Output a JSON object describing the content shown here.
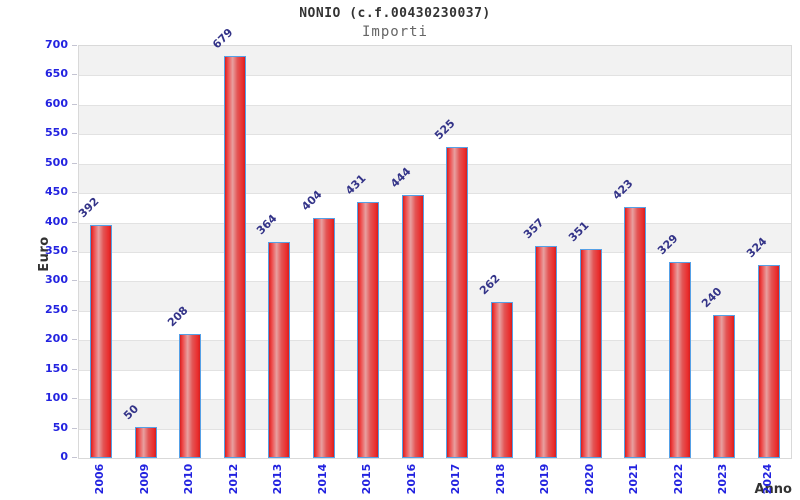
{
  "header": {
    "title": "NONIO (c.f.00430230037)",
    "subtitle": "Importi"
  },
  "axes": {
    "y_title": "Euro",
    "x_title": "Anno"
  },
  "chart_data": {
    "type": "bar",
    "title": "NONIO (c.f.00430230037)",
    "subtitle": "Importi",
    "xlabel": "Anno",
    "ylabel": "Euro",
    "categories": [
      "2006",
      "2009",
      "2010",
      "2012",
      "2013",
      "2014",
      "2015",
      "2016",
      "2017",
      "2018",
      "2019",
      "2020",
      "2021",
      "2022",
      "2023",
      "2024"
    ],
    "values": [
      392,
      50,
      208,
      679,
      364,
      404,
      431,
      444,
      525,
      262,
      357,
      351,
      423,
      329,
      240,
      324
    ],
    "ylim": [
      0,
      700
    ],
    "ytick_step": 50,
    "grid": "horizontal-alternating-bands",
    "legend": "none",
    "value_labels_rotation_deg": -45,
    "x_labels_rotation_deg": -90,
    "colors": {
      "bar_edge_red": "#d61f1f",
      "bar_center_pink": "#e8a0a0",
      "bar_border_blue": "#55a0e6",
      "tick_label_blue": "#2323e0",
      "value_label_navy": "#333388",
      "band_gray": "#f2f2f2",
      "band_white": "#ffffff",
      "gridline_gray": "#e2e2e2",
      "plot_border_gray": "#d9d9d9",
      "title_gray": "#333333",
      "subtitle_gray": "#666666"
    }
  }
}
